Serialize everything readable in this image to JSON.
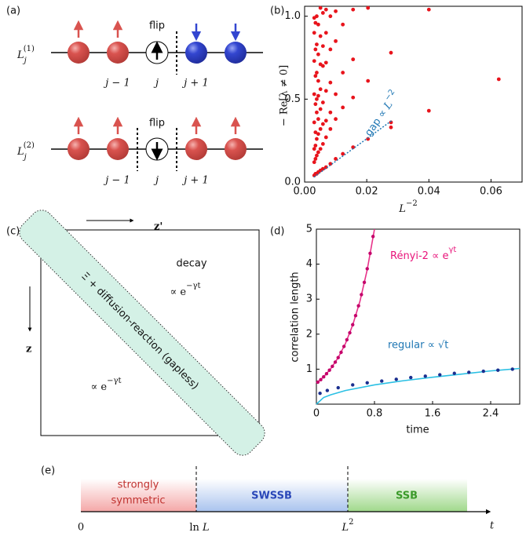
{
  "panel_a": {
    "label": "(a)",
    "rows": [
      {
        "name": {
          "base": "L",
          "sub": "j",
          "sup": "(1)"
        },
        "flip": "flip"
      },
      {
        "name": {
          "base": "L",
          "sub": "j",
          "sup": "(2)"
        },
        "flip": "flip"
      }
    ],
    "sites": [
      "j − 1",
      "j",
      "j + 1"
    ]
  },
  "chart_data": [
    {
      "type": "scatter",
      "panel_label": "(b)",
      "xlabel": {
        "base": "L",
        "sup": "−2"
      },
      "ylabel": "− Re[λ ≠ 0]",
      "color": "#e8141c",
      "x": [
        0.0625,
        0.04,
        0.04,
        0.0278,
        0.0278,
        0.0278,
        0.0204,
        0.0204,
        0.0204,
        0.0156,
        0.0156,
        0.0156,
        0.0156,
        0.0123,
        0.0123,
        0.0123,
        0.0123,
        0.01,
        0.01,
        0.01,
        0.01,
        0.01,
        0.0083,
        0.0083,
        0.0083,
        0.0083,
        0.0083,
        0.0083,
        0.0069,
        0.0069,
        0.0069,
        0.0069,
        0.0069,
        0.0069,
        0.0069,
        0.0059,
        0.0059,
        0.0059,
        0.0059,
        0.0059,
        0.0059,
        0.0059,
        0.0051,
        0.0051,
        0.0051,
        0.0051,
        0.0051,
        0.0051,
        0.0051,
        0.0051,
        0.0044,
        0.0044,
        0.0044,
        0.0044,
        0.0044,
        0.0044,
        0.0044,
        0.0044,
        0.0039,
        0.0039,
        0.0039,
        0.0039,
        0.0039,
        0.0039,
        0.0039,
        0.0039,
        0.0035,
        0.0035,
        0.0035,
        0.0035,
        0.0035,
        0.0035,
        0.0035,
        0.0035,
        0.0031,
        0.0031,
        0.0031,
        0.0031,
        0.0031,
        0.0031,
        0.0031,
        0.0031
      ],
      "y": [
        0.62,
        1.04,
        0.43,
        0.78,
        0.36,
        0.33,
        1.05,
        0.61,
        0.26,
        1.04,
        0.74,
        0.51,
        0.21,
        0.95,
        0.66,
        0.45,
        0.17,
        1.03,
        0.85,
        0.53,
        0.38,
        0.14,
        1.0,
        0.8,
        0.6,
        0.42,
        0.32,
        0.11,
        1.04,
        0.9,
        0.72,
        0.55,
        0.37,
        0.27,
        0.09,
        1.02,
        0.82,
        0.7,
        0.48,
        0.35,
        0.23,
        0.08,
        1.05,
        0.88,
        0.71,
        0.56,
        0.44,
        0.32,
        0.2,
        0.07,
        0.95,
        0.77,
        0.61,
        0.52,
        0.38,
        0.29,
        0.18,
        0.06,
        1.0,
        0.83,
        0.66,
        0.5,
        0.42,
        0.26,
        0.16,
        0.05,
        0.96,
        0.8,
        0.64,
        0.47,
        0.3,
        0.22,
        0.14,
        0.05,
        0.99,
        0.9,
        0.73,
        0.53,
        0.36,
        0.2,
        0.12,
        0.04
      ],
      "xlim": [
        0,
        0.07
      ],
      "ylim": [
        0,
        1.06
      ],
      "xticks": [
        {
          "value": 0,
          "label": "0.00"
        },
        {
          "value": 0.02,
          "label": "0.02"
        },
        {
          "value": 0.04,
          "label": "0.04"
        },
        {
          "value": 0.06,
          "label": "0.06"
        }
      ],
      "yticks": [
        {
          "value": 0,
          "label": "0.0"
        },
        {
          "value": 0.5,
          "label": "0.5"
        },
        {
          "value": 1,
          "label": "1.0"
        }
      ],
      "annotation": {
        "text": "gap ∝ ",
        "base": "L",
        "sup": "−2",
        "color": "#1f77b4",
        "line_x": [
          0.003,
          0.028
        ],
        "line_y": [
          0.03,
          0.37
        ]
      }
    },
    {
      "type": "line",
      "panel_label": "(d)",
      "xlabel": "time",
      "ylabel": "correlation length",
      "xlim": [
        0,
        2.8
      ],
      "ylim": [
        0,
        5
      ],
      "xticks": [
        0,
        0.8,
        1.6,
        2.4
      ],
      "yticks": [
        1,
        2,
        3,
        4,
        5
      ],
      "series": [
        {
          "style": "line",
          "color": "#e8338a",
          "x": [
            0,
            0.1,
            0.2,
            0.3,
            0.4,
            0.5,
            0.6,
            0.7,
            0.8
          ],
          "values": [
            0.6,
            0.78,
            1.02,
            1.33,
            1.73,
            2.26,
            2.94,
            3.84,
            5.0
          ]
        },
        {
          "style": "markers",
          "color": "#c4006a",
          "x": [
            0.02,
            0.06,
            0.1,
            0.14,
            0.18,
            0.22,
            0.26,
            0.3,
            0.34,
            0.38,
            0.42,
            0.46,
            0.5,
            0.54,
            0.58,
            0.62,
            0.66,
            0.7,
            0.74,
            0.78
          ],
          "values": [
            0.63,
            0.7,
            0.78,
            0.87,
            0.97,
            1.08,
            1.2,
            1.33,
            1.48,
            1.65,
            1.84,
            2.04,
            2.27,
            2.53,
            2.81,
            3.13,
            3.48,
            3.87,
            4.31,
            4.79
          ]
        },
        {
          "style": "line",
          "color": "#2bc0e4",
          "x": [
            0,
            0.1,
            0.2,
            0.4,
            0.8,
            1.2,
            1.6,
            2.0,
            2.4,
            2.8
          ],
          "values": [
            0,
            0.19,
            0.27,
            0.39,
            0.55,
            0.67,
            0.77,
            0.86,
            0.95,
            1.02
          ]
        },
        {
          "style": "markers",
          "color": "#1b2f8f",
          "x": [
            0.05,
            0.15,
            0.3,
            0.5,
            0.7,
            0.9,
            1.1,
            1.3,
            1.5,
            1.7,
            1.9,
            2.1,
            2.3,
            2.5,
            2.7
          ],
          "values": [
            0.31,
            0.39,
            0.47,
            0.55,
            0.61,
            0.66,
            0.71,
            0.76,
            0.8,
            0.84,
            0.88,
            0.91,
            0.94,
            0.97,
            1.0
          ]
        }
      ],
      "annotations": [
        {
          "text": "Rényi-2 ∝ e",
          "sup": "γt",
          "color": "#e8147a"
        },
        {
          "text": "regular ∝ √t",
          "color": "#1f77b4"
        }
      ]
    }
  ],
  "panel_c": {
    "label": "(c)",
    "x_axis": "z'",
    "y_axis": "z",
    "band_text": "Ξ + diffusion-reaction (gapless)",
    "upper": {
      "title": "decay",
      "text": "∝ e",
      "sup": "−γt"
    },
    "lower": {
      "text": "∝ e",
      "sup": "−γt"
    }
  },
  "panel_e": {
    "label": "(e)",
    "phases": [
      [
        "strongly",
        "symmetric"
      ],
      [
        "SWSSB"
      ],
      [
        "SSB"
      ]
    ],
    "axis_labels": [
      {
        "text": "0"
      },
      {
        "text": "ln ",
        "var": "L"
      },
      {
        "var": "L",
        "sup": "2"
      }
    ],
    "axis_name": "t"
  }
}
